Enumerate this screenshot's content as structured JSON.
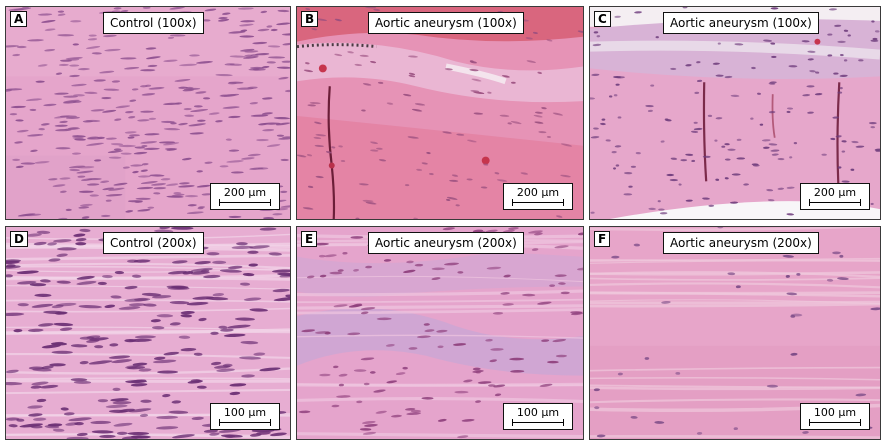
{
  "panels": [
    {
      "letter": "A",
      "title": "Control (100x)",
      "scale": "200 µm"
    },
    {
      "letter": "B",
      "title": "Aortic aneurysm (100x)",
      "scale": "200 µm"
    },
    {
      "letter": "C",
      "title": "Aortic aneurysm (100x)",
      "scale": "200 µm"
    },
    {
      "letter": "D",
      "title": "Control (200x)",
      "scale": "100 µm"
    },
    {
      "letter": "E",
      "title": "Aortic aneurysm (200x)",
      "scale": "100 µm"
    },
    {
      "letter": "F",
      "title": "Aortic aneurysm (200x)",
      "scale": "100 µm"
    }
  ]
}
